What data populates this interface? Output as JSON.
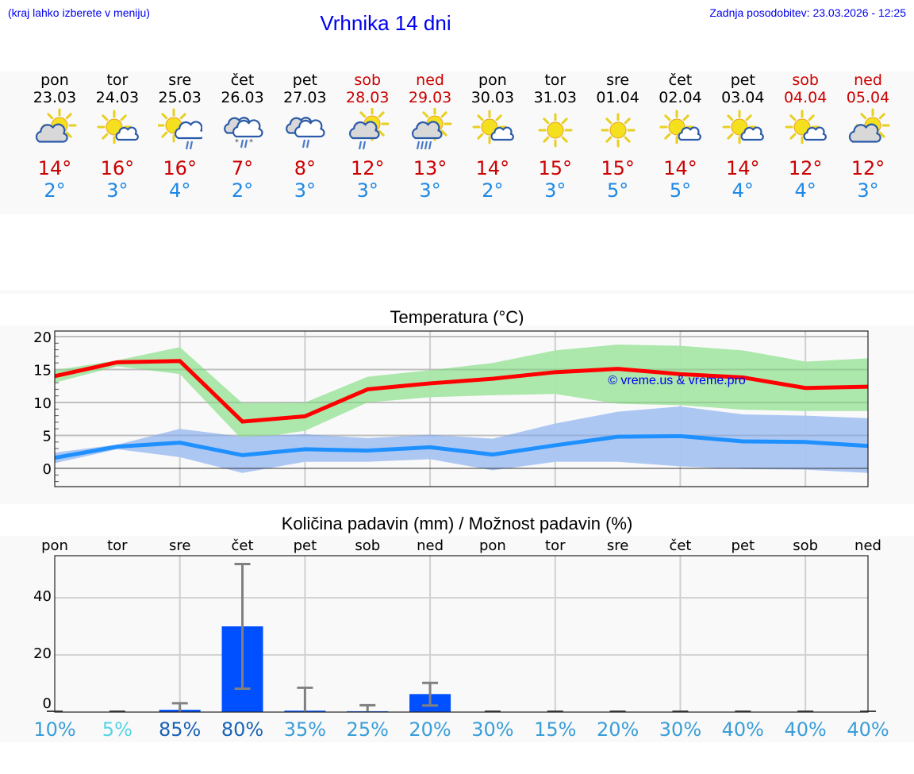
{
  "header": {
    "location_note": "(kraj lahko izberete v meniju)",
    "title": "Vrhnika 14 dni",
    "last_update": "Zadnja posodobitev: 23.03.2026 - 12:25"
  },
  "colors": {
    "link_blue": "#0000ee",
    "max_temp": "#cc0000",
    "min_temp": "#1e88e5",
    "max_line": "#ff0000",
    "max_band": "#a8e6a8",
    "min_line": "#1e90ff",
    "min_band": "#a9c4f2",
    "precip_bar": "#0050ff",
    "error_bar": "#808080"
  },
  "days": [
    {
      "name": "pon",
      "date": "23.03",
      "weekend": false,
      "icon": "sun-behind-cloud-icon",
      "max": "14°",
      "min": "2°"
    },
    {
      "name": "tor",
      "date": "24.03",
      "weekend": false,
      "icon": "sun-small-cloud-icon",
      "max": "16°",
      "min": "3°"
    },
    {
      "name": "sre",
      "date": "25.03",
      "weekend": false,
      "icon": "sun-cloud-rain-icon",
      "max": "16°",
      "min": "4°"
    },
    {
      "name": "čet",
      "date": "26.03",
      "weekend": false,
      "icon": "cloud-rain-snow-icon",
      "max": "7°",
      "min": "2°"
    },
    {
      "name": "pet",
      "date": "27.03",
      "weekend": false,
      "icon": "cloud-rain-icon",
      "max": "8°",
      "min": "3°"
    },
    {
      "name": "sob",
      "date": "28.03",
      "weekend": true,
      "icon": "sun-cloud-light-rain-icon",
      "max": "12°",
      "min": "3°"
    },
    {
      "name": "ned",
      "date": "29.03",
      "weekend": true,
      "icon": "sun-cloud-heavy-rain-icon",
      "max": "13°",
      "min": "3°"
    },
    {
      "name": "pon",
      "date": "30.03",
      "weekend": false,
      "icon": "sun-small-cloud-icon",
      "max": "14°",
      "min": "2°"
    },
    {
      "name": "tor",
      "date": "31.03",
      "weekend": false,
      "icon": "sun-icon",
      "max": "15°",
      "min": "3°"
    },
    {
      "name": "sre",
      "date": "01.04",
      "weekend": false,
      "icon": "sun-icon",
      "max": "15°",
      "min": "5°"
    },
    {
      "name": "čet",
      "date": "02.04",
      "weekend": false,
      "icon": "sun-small-cloud-icon",
      "max": "14°",
      "min": "5°"
    },
    {
      "name": "pet",
      "date": "03.04",
      "weekend": false,
      "icon": "sun-small-cloud-icon",
      "max": "14°",
      "min": "4°"
    },
    {
      "name": "sob",
      "date": "04.04",
      "weekend": true,
      "icon": "sun-small-cloud-icon",
      "max": "12°",
      "min": "4°"
    },
    {
      "name": "ned",
      "date": "05.04",
      "weekend": true,
      "icon": "sun-behind-cloud-icon",
      "max": "12°",
      "min": "3°"
    }
  ],
  "chart_data": [
    {
      "type": "line",
      "title": "Temperatura (°C)",
      "xlabel": "",
      "ylabel": "",
      "x": [
        "23.03",
        "24.03",
        "25.03",
        "26.03",
        "27.03",
        "28.03",
        "29.03",
        "30.03",
        "31.03",
        "01.04",
        "02.04",
        "03.04",
        "04.04",
        "05.04"
      ],
      "ylim": [
        -2.8,
        20.8
      ],
      "yticks": [
        0,
        5,
        10,
        15,
        20
      ],
      "grid": true,
      "watermark": "© vreme.us & vreme.pro",
      "series": [
        {
          "name": "max",
          "values": [
            14.0,
            16.1,
            16.3,
            7.1,
            7.9,
            12.0,
            12.9,
            13.6,
            14.6,
            15.1,
            14.3,
            13.8,
            12.2,
            12.4
          ],
          "band_low": [
            13.0,
            15.5,
            14.3,
            4.3,
            5.7,
            10.0,
            10.8,
            11.1,
            11.3,
            9.8,
            9.6,
            8.9,
            8.7,
            8.7
          ],
          "band_high": [
            14.9,
            16.4,
            18.4,
            9.9,
            10.0,
            13.9,
            14.9,
            16.0,
            17.9,
            18.8,
            18.6,
            17.9,
            16.2,
            16.7
          ]
        },
        {
          "name": "min",
          "values": [
            1.6,
            3.3,
            3.9,
            2.0,
            2.9,
            2.7,
            3.2,
            2.1,
            3.5,
            4.8,
            4.9,
            4.1,
            4.0,
            3.4
          ],
          "band_low": [
            0.8,
            2.9,
            1.7,
            -0.7,
            1.0,
            1.0,
            1.4,
            -0.3,
            1.0,
            1.0,
            0.3,
            -0.1,
            -0.2,
            -0.7
          ],
          "band_high": [
            2.4,
            3.6,
            6.0,
            4.8,
            5.2,
            4.6,
            5.1,
            4.5,
            6.8,
            8.6,
            9.4,
            8.2,
            8.0,
            7.6
          ]
        }
      ]
    },
    {
      "type": "bar",
      "title": "Količina padavin (mm) / Možnost padavin (%)",
      "categories": [
        "pon",
        "tor",
        "sre",
        "čet",
        "pet",
        "sob",
        "ned",
        "pon",
        "tor",
        "sre",
        "čet",
        "pet",
        "sob",
        "ned"
      ],
      "ylim": [
        0,
        54.7
      ],
      "yticks": [
        0,
        20,
        40
      ],
      "grid": true,
      "values": [
        0.0,
        0.0,
        0.8,
        30.0,
        0.5,
        0.3,
        6.3,
        0.0,
        0.0,
        0.0,
        0.0,
        0.0,
        0.0,
        0.0
      ],
      "error_low": [
        null,
        null,
        0.0,
        8.2,
        0.0,
        0.0,
        2.3,
        null,
        null,
        null,
        null,
        null,
        null,
        null
      ],
      "error_high": [
        null,
        null,
        3.1,
        51.8,
        8.5,
        2.4,
        10.2,
        null,
        null,
        null,
        null,
        null,
        null,
        null
      ],
      "probability_labels": [
        "10%",
        "5%",
        "85%",
        "80%",
        "35%",
        "25%",
        "20%",
        "30%",
        "15%",
        "20%",
        "30%",
        "40%",
        "40%",
        "40%"
      ],
      "probability_colors": [
        "#3a9ed8",
        "#55d4e6",
        "#1a62b5",
        "#1a62b5",
        "#3a9ed8",
        "#3a9ed8",
        "#3a9ed8",
        "#3a9ed8",
        "#3a9ed8",
        "#3a9ed8",
        "#3a9ed8",
        "#3a9ed8",
        "#3a9ed8",
        "#3a9ed8"
      ]
    }
  ]
}
